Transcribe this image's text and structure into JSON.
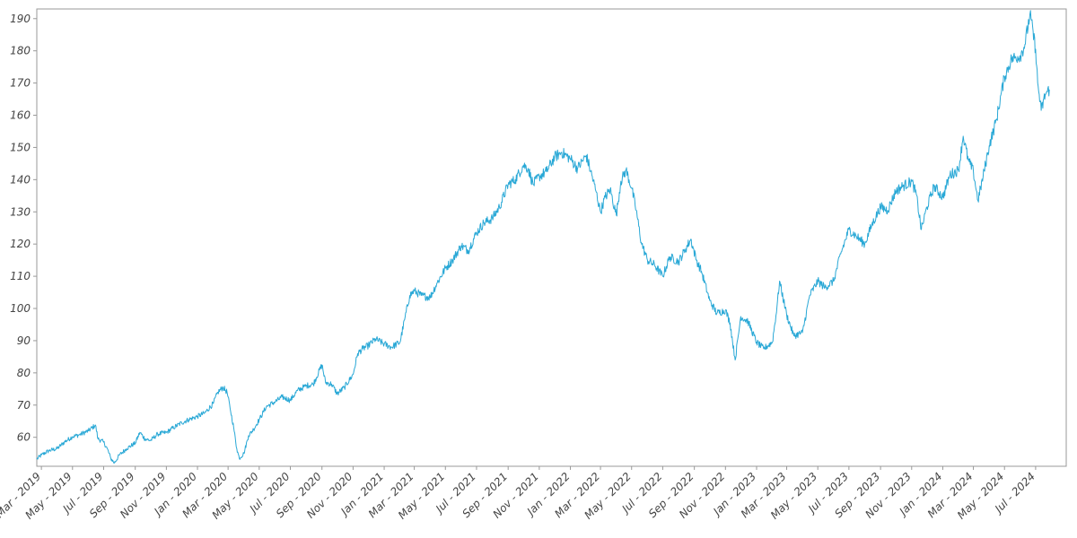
{
  "chart_data": {
    "type": "line",
    "title": "",
    "xlabel": "",
    "ylabel": "",
    "x_range": [
      "2019-02-20",
      "2024-08-30"
    ],
    "ylim": [
      51,
      193
    ],
    "grid": false,
    "y_ticks": [
      60,
      70,
      80,
      90,
      100,
      110,
      120,
      130,
      140,
      150,
      160,
      170,
      180,
      190
    ],
    "x_ticks": [
      {
        "date": "2019-03-01",
        "label": "Mar - 2019"
      },
      {
        "date": "2019-05-01",
        "label": "May - 2019"
      },
      {
        "date": "2019-07-01",
        "label": "Jul - 2019"
      },
      {
        "date": "2019-09-01",
        "label": "Sep - 2019"
      },
      {
        "date": "2019-11-01",
        "label": "Nov - 2019"
      },
      {
        "date": "2020-01-01",
        "label": "Jan - 2020"
      },
      {
        "date": "2020-03-01",
        "label": "Mar - 2020"
      },
      {
        "date": "2020-05-01",
        "label": "May - 2020"
      },
      {
        "date": "2020-07-01",
        "label": "Jul - 2020"
      },
      {
        "date": "2020-09-01",
        "label": "Sep - 2020"
      },
      {
        "date": "2020-11-01",
        "label": "Nov - 2020"
      },
      {
        "date": "2021-01-01",
        "label": "Jan - 2021"
      },
      {
        "date": "2021-03-01",
        "label": "Mar - 2021"
      },
      {
        "date": "2021-05-01",
        "label": "May - 2021"
      },
      {
        "date": "2021-07-01",
        "label": "Jul - 2021"
      },
      {
        "date": "2021-09-01",
        "label": "Sep - 2021"
      },
      {
        "date": "2021-11-01",
        "label": "Nov - 2021"
      },
      {
        "date": "2022-01-01",
        "label": "Jan - 2022"
      },
      {
        "date": "2022-03-01",
        "label": "Mar - 2022"
      },
      {
        "date": "2022-05-01",
        "label": "May - 2022"
      },
      {
        "date": "2022-07-01",
        "label": "Jul - 2022"
      },
      {
        "date": "2022-09-01",
        "label": "Sep - 2022"
      },
      {
        "date": "2022-11-01",
        "label": "Nov - 2022"
      },
      {
        "date": "2023-01-01",
        "label": "Jan - 2023"
      },
      {
        "date": "2023-03-01",
        "label": "Mar - 2023"
      },
      {
        "date": "2023-05-01",
        "label": "May - 2023"
      },
      {
        "date": "2023-07-01",
        "label": "Jul - 2023"
      },
      {
        "date": "2023-09-01",
        "label": "Sep - 2023"
      },
      {
        "date": "2023-11-01",
        "label": "Nov - 2023"
      },
      {
        "date": "2024-01-01",
        "label": "Jan - 2024"
      },
      {
        "date": "2024-03-01",
        "label": "Mar - 2024"
      },
      {
        "date": "2024-05-01",
        "label": "May - 2024"
      },
      {
        "date": "2024-07-01",
        "label": "Jul - 2024"
      }
    ],
    "series": [
      {
        "color": "#29a8d6",
        "points": [
          [
            "2019-02-20",
            53.2
          ],
          [
            "2019-03-01",
            54.5
          ],
          [
            "2019-03-15",
            55.8
          ],
          [
            "2019-04-01",
            56.5
          ],
          [
            "2019-04-15",
            58.5
          ],
          [
            "2019-05-01",
            60.2
          ],
          [
            "2019-05-15",
            60.8
          ],
          [
            "2019-06-01",
            62.0
          ],
          [
            "2019-06-15",
            63.8
          ],
          [
            "2019-06-20",
            59.5
          ],
          [
            "2019-07-01",
            58.5
          ],
          [
            "2019-07-08",
            56.5
          ],
          [
            "2019-07-15",
            53.5
          ],
          [
            "2019-07-22",
            52.0
          ],
          [
            "2019-08-01",
            54.5
          ],
          [
            "2019-08-15",
            56.5
          ],
          [
            "2019-09-01",
            58.2
          ],
          [
            "2019-09-10",
            61.5
          ],
          [
            "2019-09-20",
            59.5
          ],
          [
            "2019-10-01",
            59.0
          ],
          [
            "2019-10-15",
            61.0
          ],
          [
            "2019-11-01",
            61.5
          ],
          [
            "2019-11-15",
            63.0
          ],
          [
            "2019-12-01",
            64.5
          ],
          [
            "2019-12-15",
            65.5
          ],
          [
            "2020-01-01",
            66.5
          ],
          [
            "2020-01-15",
            67.5
          ],
          [
            "2020-02-01",
            70.5
          ],
          [
            "2020-02-10",
            74.0
          ],
          [
            "2020-02-20",
            75.5
          ],
          [
            "2020-02-28",
            74.0
          ],
          [
            "2020-03-05",
            69.0
          ],
          [
            "2020-03-12",
            63.0
          ],
          [
            "2020-03-18",
            56.5
          ],
          [
            "2020-03-23",
            53.5
          ],
          [
            "2020-04-01",
            55.0
          ],
          [
            "2020-04-10",
            60.5
          ],
          [
            "2020-04-20",
            62.5
          ],
          [
            "2020-05-01",
            65.5
          ],
          [
            "2020-05-15",
            69.5
          ],
          [
            "2020-06-01",
            71.0
          ],
          [
            "2020-06-15",
            72.5
          ],
          [
            "2020-07-01",
            71.5
          ],
          [
            "2020-07-15",
            74.5
          ],
          [
            "2020-08-01",
            76.0
          ],
          [
            "2020-08-15",
            76.5
          ],
          [
            "2020-09-01",
            82.5
          ],
          [
            "2020-09-08",
            77.0
          ],
          [
            "2020-09-20",
            76.5
          ],
          [
            "2020-10-01",
            73.5
          ],
          [
            "2020-10-15",
            75.5
          ],
          [
            "2020-11-01",
            79.5
          ],
          [
            "2020-11-10",
            86.0
          ],
          [
            "2020-11-20",
            87.5
          ],
          [
            "2020-12-01",
            88.5
          ],
          [
            "2020-12-15",
            90.5
          ],
          [
            "2021-01-01",
            89.0
          ],
          [
            "2021-01-15",
            88.0
          ],
          [
            "2021-02-01",
            89.5
          ],
          [
            "2021-02-10",
            96.5
          ],
          [
            "2021-02-20",
            104.0
          ],
          [
            "2021-03-01",
            105.5
          ],
          [
            "2021-03-15",
            104.0
          ],
          [
            "2021-04-01",
            103.5
          ],
          [
            "2021-04-15",
            108.0
          ],
          [
            "2021-05-01",
            112.5
          ],
          [
            "2021-05-15",
            115.0
          ],
          [
            "2021-06-01",
            119.5
          ],
          [
            "2021-06-15",
            118.0
          ],
          [
            "2021-07-01",
            123.5
          ],
          [
            "2021-07-15",
            126.5
          ],
          [
            "2021-08-01",
            128.0
          ],
          [
            "2021-08-15",
            131.5
          ],
          [
            "2021-09-01",
            138.5
          ],
          [
            "2021-09-15",
            140.0
          ],
          [
            "2021-10-01",
            144.5
          ],
          [
            "2021-10-10",
            143.5
          ],
          [
            "2021-10-20",
            138.5
          ],
          [
            "2021-11-01",
            141.0
          ],
          [
            "2021-11-15",
            142.5
          ],
          [
            "2021-12-01",
            147.0
          ],
          [
            "2021-12-15",
            148.5
          ],
          [
            "2022-01-01",
            146.5
          ],
          [
            "2022-01-15",
            143.5
          ],
          [
            "2022-02-01",
            147.5
          ],
          [
            "2022-02-10",
            142.5
          ],
          [
            "2022-02-20",
            136.5
          ],
          [
            "2022-03-01",
            130.0
          ],
          [
            "2022-03-10",
            134.5
          ],
          [
            "2022-03-20",
            137.0
          ],
          [
            "2022-04-01",
            129.0
          ],
          [
            "2022-04-10",
            139.5
          ],
          [
            "2022-04-20",
            143.0
          ],
          [
            "2022-05-01",
            137.5
          ],
          [
            "2022-05-10",
            130.5
          ],
          [
            "2022-05-20",
            120.5
          ],
          [
            "2022-06-01",
            115.0
          ],
          [
            "2022-06-15",
            113.5
          ],
          [
            "2022-07-01",
            110.0
          ],
          [
            "2022-07-15",
            116.0
          ],
          [
            "2022-08-01",
            114.5
          ],
          [
            "2022-08-15",
            118.5
          ],
          [
            "2022-08-25",
            121.5
          ],
          [
            "2022-09-05",
            115.0
          ],
          [
            "2022-09-15",
            111.5
          ],
          [
            "2022-10-01",
            102.5
          ],
          [
            "2022-10-15",
            98.5
          ],
          [
            "2022-11-01",
            99.5
          ],
          [
            "2022-11-10",
            95.5
          ],
          [
            "2022-11-20",
            84.0
          ],
          [
            "2022-12-01",
            97.5
          ],
          [
            "2022-12-15",
            96.0
          ],
          [
            "2023-01-01",
            89.5
          ],
          [
            "2023-01-15",
            87.5
          ],
          [
            "2023-02-01",
            89.5
          ],
          [
            "2023-02-10",
            100.5
          ],
          [
            "2023-02-15",
            108.5
          ],
          [
            "2023-03-01",
            98.0
          ],
          [
            "2023-03-15",
            91.5
          ],
          [
            "2023-04-01",
            92.5
          ],
          [
            "2023-04-15",
            104.0
          ],
          [
            "2023-05-01",
            108.5
          ],
          [
            "2023-05-15",
            106.5
          ],
          [
            "2023-06-01",
            108.5
          ],
          [
            "2023-06-15",
            117.0
          ],
          [
            "2023-07-01",
            124.5
          ],
          [
            "2023-07-15",
            122.5
          ],
          [
            "2023-08-01",
            120.0
          ],
          [
            "2023-08-15",
            126.0
          ],
          [
            "2023-09-01",
            131.5
          ],
          [
            "2023-09-15",
            130.5
          ],
          [
            "2023-10-01",
            136.5
          ],
          [
            "2023-10-15",
            138.0
          ],
          [
            "2023-11-01",
            139.5
          ],
          [
            "2023-11-10",
            135.5
          ],
          [
            "2023-11-20",
            124.5
          ],
          [
            "2023-12-01",
            131.5
          ],
          [
            "2023-12-15",
            138.0
          ],
          [
            "2024-01-01",
            134.5
          ],
          [
            "2024-01-15",
            141.5
          ],
          [
            "2024-02-01",
            143.0
          ],
          [
            "2024-02-10",
            153.5
          ],
          [
            "2024-02-20",
            146.0
          ],
          [
            "2024-03-01",
            142.5
          ],
          [
            "2024-03-10",
            133.5
          ],
          [
            "2024-03-20",
            141.0
          ],
          [
            "2024-04-01",
            150.5
          ],
          [
            "2024-04-15",
            158.5
          ],
          [
            "2024-05-01",
            172.0
          ],
          [
            "2024-05-15",
            177.5
          ],
          [
            "2024-06-01",
            178.5
          ],
          [
            "2024-06-10",
            182.0
          ],
          [
            "2024-06-20",
            191.5
          ],
          [
            "2024-07-01",
            180.5
          ],
          [
            "2024-07-05",
            170.0
          ],
          [
            "2024-07-12",
            161.5
          ],
          [
            "2024-07-20",
            166.5
          ],
          [
            "2024-07-28",
            168.0
          ]
        ]
      }
    ]
  }
}
